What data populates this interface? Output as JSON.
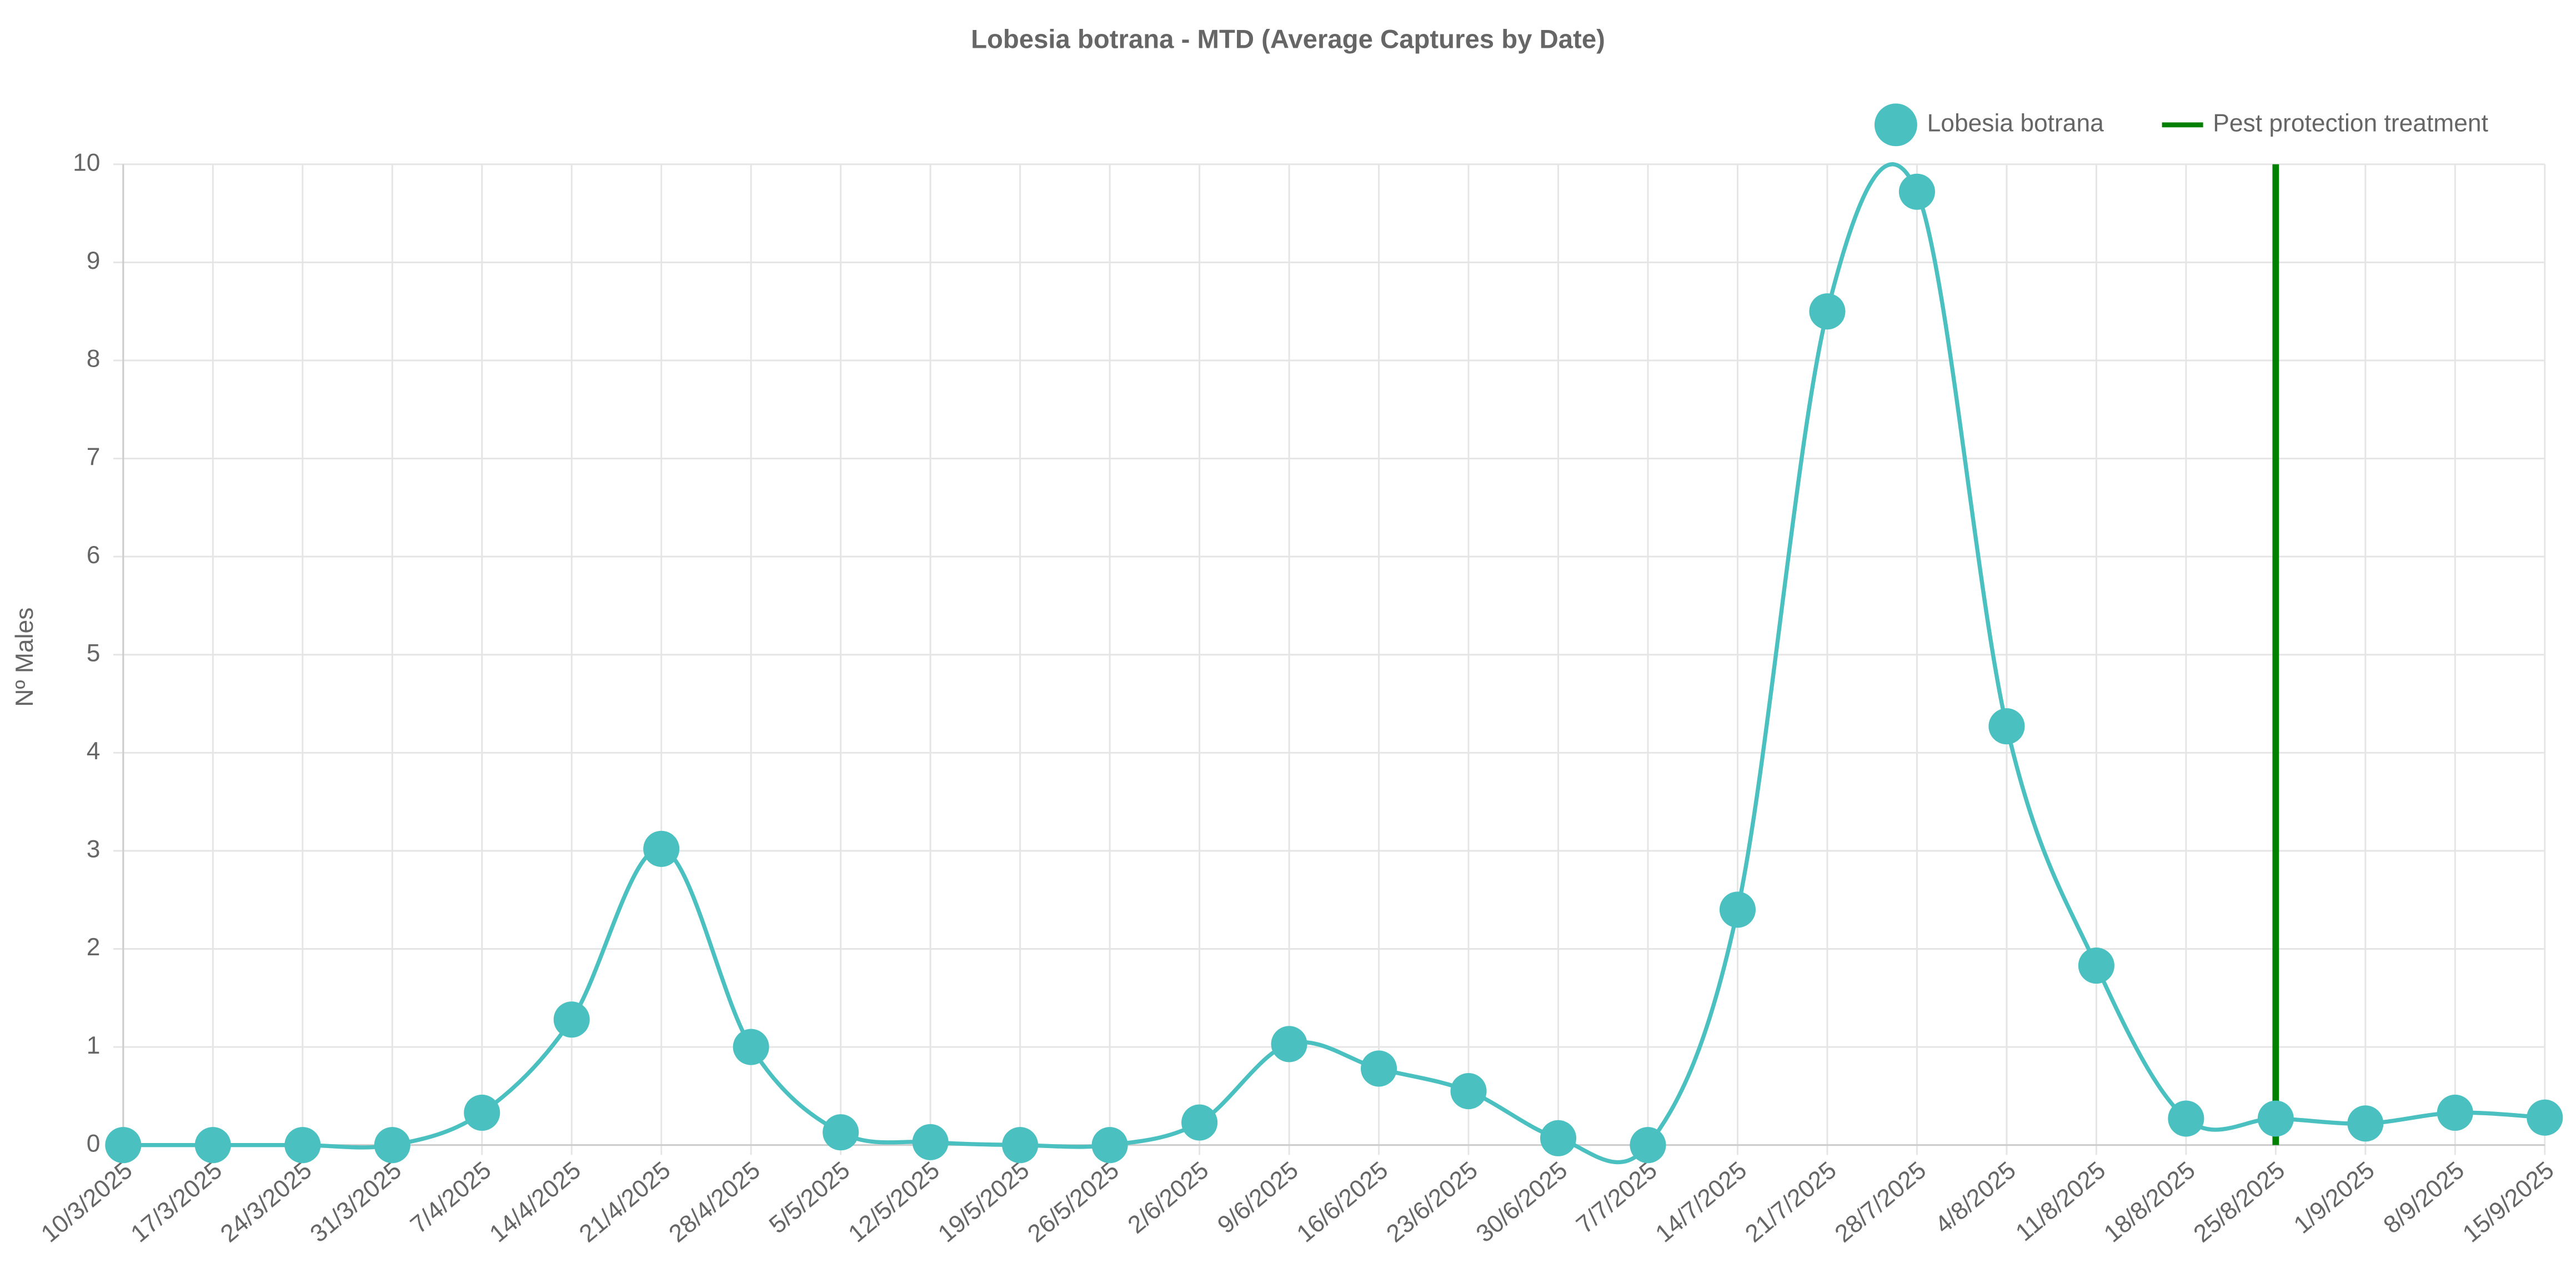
{
  "chart_data": {
    "type": "line",
    "title": "Lobesia botrana - MTD (Average Captures by Date)",
    "y_label": "Nº Males",
    "categories": [
      "10/3/2025",
      "17/3/2025",
      "24/3/2025",
      "31/3/2025",
      "7/4/2025",
      "14/4/2025",
      "21/4/2025",
      "28/4/2025",
      "5/5/2025",
      "12/5/2025",
      "19/5/2025",
      "26/5/2025",
      "2/6/2025",
      "9/6/2025",
      "16/6/2025",
      "23/6/2025",
      "30/6/2025",
      "7/7/2025",
      "14/7/2025",
      "21/7/2025",
      "28/7/2025",
      "4/8/2025",
      "11/8/2025",
      "18/8/2025",
      "25/8/2025",
      "1/9/2025",
      "8/9/2025",
      "15/9/2025"
    ],
    "series": [
      {
        "name": "Lobesia botrana",
        "color": "#4bc0c0",
        "values": [
          0,
          0,
          0,
          0,
          0.33,
          1.28,
          3.02,
          1.0,
          0.13,
          0.03,
          0,
          0,
          0.23,
          1.03,
          0.78,
          0.55,
          0.07,
          0,
          2.4,
          8.5,
          9.72,
          4.27,
          1.83,
          0.27,
          0.27,
          0.22,
          0.33,
          0.28
        ]
      }
    ],
    "treatment": {
      "name": "Pest protection treatment",
      "color": "#008000",
      "at": "25/8/2025"
    },
    "ylim": [
      0,
      10
    ],
    "yticks": [
      0,
      1,
      2,
      3,
      4,
      5,
      6,
      7,
      8,
      9,
      10
    ],
    "grid": true,
    "legend": "top-right"
  }
}
